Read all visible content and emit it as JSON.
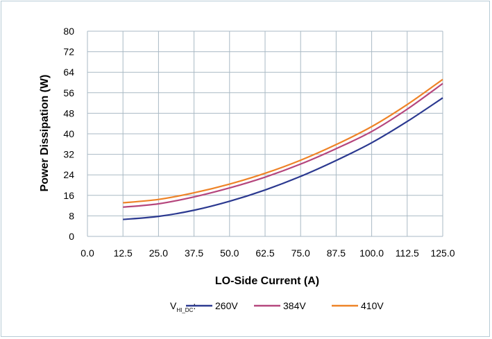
{
  "chart_data": {
    "type": "line",
    "title": "",
    "xlabel": "LO-Side Current (A)",
    "ylabel": "Power Dissipation (W)",
    "xlim": [
      0,
      125
    ],
    "ylim": [
      0,
      80
    ],
    "x_ticks": [
      "0.0",
      "12.5",
      "25.0",
      "37.5",
      "50.0",
      "62.5",
      "75.0",
      "87.5",
      "100.0",
      "112.5",
      "125.0"
    ],
    "y_ticks": [
      "0",
      "8",
      "16",
      "24",
      "32",
      "40",
      "48",
      "56",
      "64",
      "72",
      "80"
    ],
    "grid": true,
    "legend_position": "bottom",
    "legend_prefix": "V",
    "legend_prefix_sub": "HI_DC",
    "legend_prefix_suffix": ":",
    "x": [
      12.5,
      25,
      37.5,
      50,
      62.5,
      75,
      87.5,
      100,
      112.5,
      125
    ],
    "series": [
      {
        "name": "260V",
        "color": "#2b3990",
        "values": [
          6.6,
          7.8,
          10.2,
          13.7,
          18.1,
          23.4,
          29.6,
          36.5,
          44.8,
          54.0
        ]
      },
      {
        "name": "384V",
        "color": "#b5467d",
        "values": [
          11.4,
          12.7,
          15.4,
          18.9,
          23.1,
          28.2,
          34.2,
          40.9,
          49.6,
          59.6
        ]
      },
      {
        "name": "410V",
        "color": "#ee8327",
        "values": [
          13.1,
          14.4,
          17.0,
          20.4,
          24.6,
          29.7,
          35.8,
          42.8,
          51.4,
          61.2
        ]
      }
    ]
  }
}
